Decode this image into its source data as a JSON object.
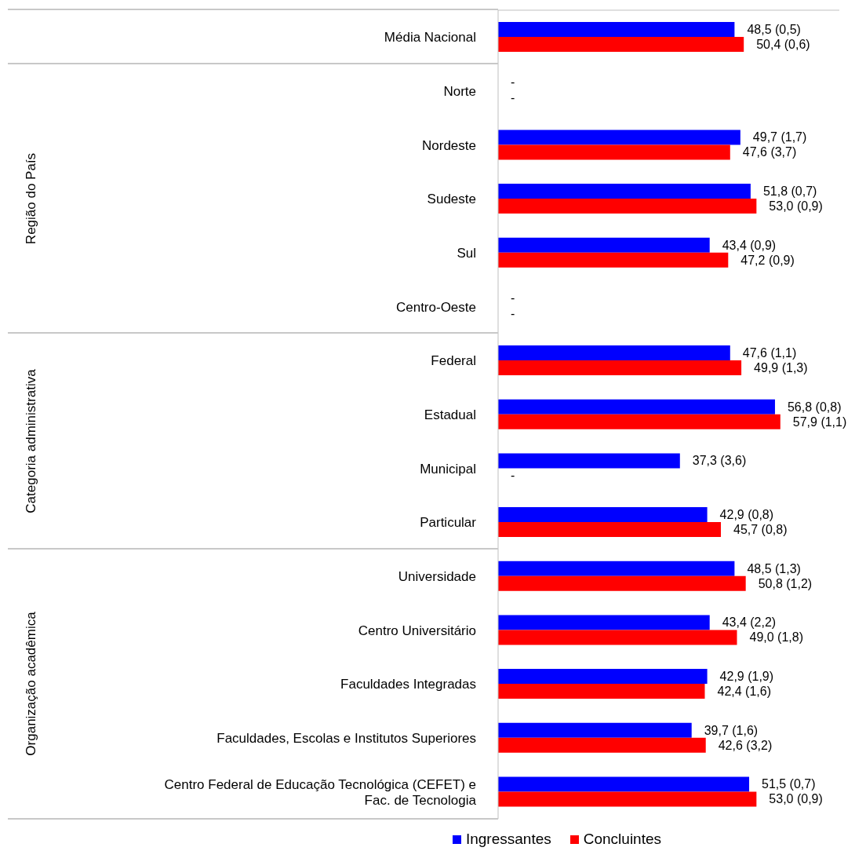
{
  "chart_data": {
    "type": "bar",
    "orientation": "horizontal",
    "categories": [
      "Média Nacional",
      "Norte",
      "Nordeste",
      "Sudeste",
      "Sul",
      "Centro-Oeste",
      "Federal",
      "Estadual",
      "Municipal",
      "Particular",
      "Universidade",
      "Centro Universitário",
      "Faculdades Integradas",
      "Faculdades, Escolas e Institutos Superiores",
      "Centro Federal de Educação Tecnológica (CEFET) e Fac. de Tecnologia"
    ],
    "series": [
      {
        "name": "Ingressantes",
        "color": "#0000ff",
        "values": [
          48.5,
          null,
          49.7,
          51.8,
          43.4,
          null,
          47.6,
          56.8,
          37.3,
          42.9,
          48.5,
          43.4,
          42.9,
          39.7,
          51.5
        ],
        "value_labels": [
          "48,5 (0,5)",
          "-",
          "49,7 (1,7)",
          "51,8 (0,7)",
          "43,4 (0,9)",
          "-",
          "47,6 (1,1)",
          "56,8 (0,8)",
          "37,3 (3,6)",
          "42,9 (0,8)",
          "48,5 (1,3)",
          "43,4 (2,2)",
          "42,9 (1,9)",
          "39,7 (1,6)",
          "51,5 (0,7)"
        ]
      },
      {
        "name": "Concluintes",
        "color": "#ff0000",
        "values": [
          50.4,
          null,
          47.6,
          53.0,
          47.2,
          null,
          49.9,
          57.9,
          null,
          45.7,
          50.8,
          49.0,
          42.4,
          42.6,
          53.0
        ],
        "value_labels": [
          "50,4 (0,6)",
          "-",
          "47,6 (3,7)",
          "53,0 (0,9)",
          "47,2 (0,9)",
          "-",
          "49,9 (1,3)",
          "57,9 (1,1)",
          "-",
          "45,7 (0,8)",
          "50,8 (1,2)",
          "49,0 (1,8)",
          "42,4 (1,6)",
          "42,6 (3,2)",
          "53,0 (0,9)"
        ]
      }
    ],
    "xlim": [
      0,
      70
    ],
    "annotations": [
      "Região do País",
      "Categoria administrativa",
      "Organização acadêmica"
    ],
    "tick_labels": "y",
    "grid": false,
    "legend": "bottom"
  }
}
